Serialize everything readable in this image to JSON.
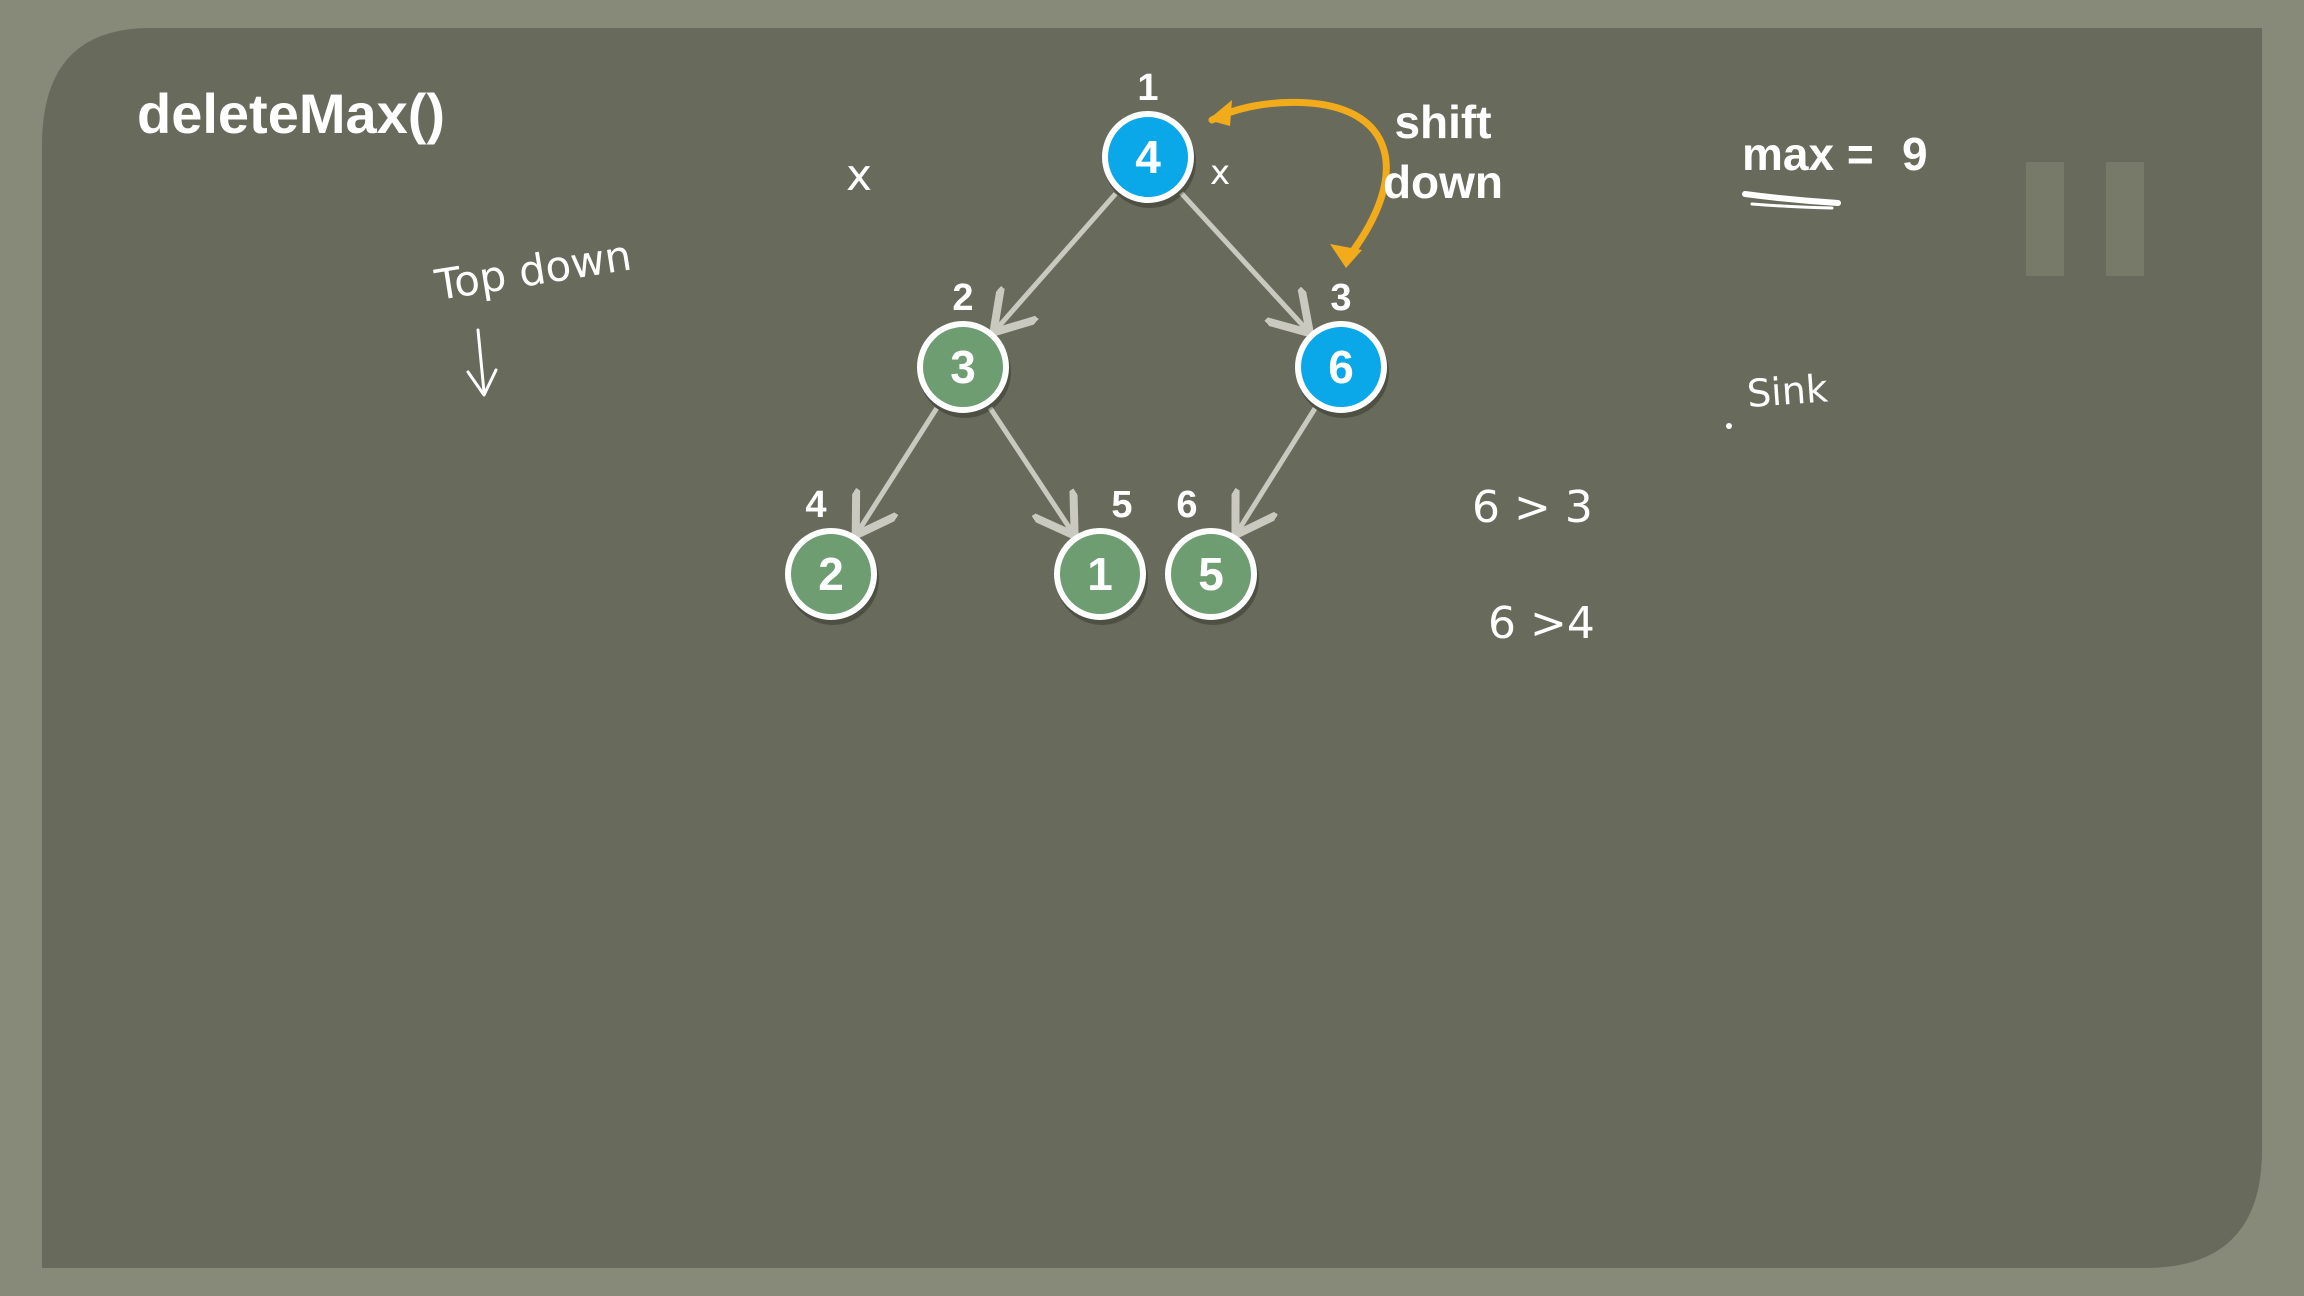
{
  "slide": {
    "title": "deleteMax()",
    "colors": {
      "background_outer": "#878a78",
      "board": "#686b5b",
      "node_blue": "#0aa8e8",
      "node_green": "#6f9d72",
      "edge": "#c9c9bf",
      "highlight_arrow": "#f2ab1b"
    }
  },
  "heap": {
    "nodes": [
      {
        "index": "1",
        "value": "4",
        "color": "blue"
      },
      {
        "index": "2",
        "value": "3",
        "color": "green"
      },
      {
        "index": "3",
        "value": "6",
        "color": "blue"
      },
      {
        "index": "4",
        "value": "2",
        "color": "green"
      },
      {
        "index": "5",
        "value": "1",
        "color": "green"
      },
      {
        "index": "6",
        "value": "5",
        "color": "green"
      }
    ],
    "edges": [
      {
        "from": "1",
        "to": "2"
      },
      {
        "from": "1",
        "to": "3"
      },
      {
        "from": "2",
        "to": "4"
      },
      {
        "from": "2",
        "to": "5"
      },
      {
        "from": "3",
        "to": "6"
      }
    ]
  },
  "annotations": {
    "shift_line1": "shift",
    "shift_line2": "down",
    "max_label": "max =",
    "max_value": "9",
    "top_down": "Top down",
    "sink": "Sink",
    "cmp1": "6 > 3",
    "cmp2": "6 >4",
    "mark_x": "x"
  }
}
